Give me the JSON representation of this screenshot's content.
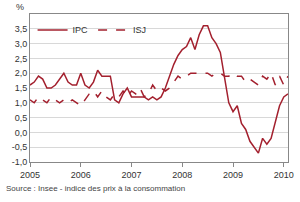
{
  "chart_data": {
    "type": "line",
    "ylabel": "%",
    "annotations": [
      "Source : Insee - indice des prix à la consommation"
    ],
    "categories": [
      "2005",
      null,
      null,
      null,
      null,
      null,
      null,
      null,
      null,
      null,
      null,
      null,
      "2006",
      null,
      null,
      null,
      null,
      null,
      null,
      null,
      null,
      null,
      null,
      null,
      "2007",
      null,
      null,
      null,
      null,
      null,
      null,
      null,
      null,
      null,
      null,
      null,
      "2008",
      null,
      null,
      null,
      null,
      null,
      null,
      null,
      null,
      null,
      null,
      null,
      "2009",
      null,
      null,
      null,
      null,
      null,
      null,
      null,
      null,
      null,
      null,
      null,
      "2010",
      null
    ],
    "series": [
      {
        "name": "IPC",
        "color": "#a3202e",
        "line_style": "solid",
        "values": [
          1.6,
          1.7,
          1.9,
          1.8,
          1.5,
          1.5,
          1.6,
          1.8,
          2.0,
          1.7,
          1.6,
          1.6,
          2.0,
          1.6,
          1.5,
          1.7,
          2.1,
          1.9,
          1.9,
          1.9,
          1.1,
          1.0,
          1.3,
          1.5,
          1.2,
          1.2,
          1.2,
          1.2,
          1.1,
          1.2,
          1.1,
          1.2,
          1.5,
          1.9,
          2.3,
          2.6,
          2.8,
          2.9,
          3.2,
          2.8,
          3.3,
          3.6,
          3.6,
          3.2,
          3.0,
          2.7,
          1.9,
          1.0,
          0.7,
          0.9,
          0.3,
          0.1,
          -0.3,
          -0.5,
          -0.7,
          -0.2,
          -0.4,
          -0.2,
          0.4,
          0.9,
          1.2,
          1.3
        ]
      },
      {
        "name": "ISJ",
        "color": "#a3202e",
        "line_style": "dashed",
        "values": [
          1.1,
          1.0,
          1.2,
          1.1,
          1.0,
          1.2,
          1.1,
          1.0,
          1.1,
          1.0,
          1.1,
          1.0,
          0.9,
          1.1,
          1.3,
          1.4,
          1.2,
          1.4,
          1.2,
          1.1,
          1.3,
          1.2,
          1.4,
          1.2,
          1.4,
          1.3,
          1.5,
          1.2,
          1.3,
          1.6,
          1.4,
          1.5,
          1.4,
          1.5,
          1.7,
          1.9,
          1.8,
          1.9,
          2.0,
          2.0,
          2.0,
          2.0,
          2.0,
          1.9,
          2.0,
          2.0,
          1.9,
          1.9,
          2.0,
          1.9,
          1.9,
          1.7,
          1.8,
          1.7,
          1.6,
          1.9,
          1.8,
          2.0,
          1.6,
          1.9,
          1.6,
          1.9
        ]
      }
    ],
    "ylim": [
      -1,
      4
    ],
    "yticks": [
      {
        "value": -1,
        "label": "-1,0"
      },
      {
        "value": -0.5,
        "label": "-0,5"
      },
      {
        "value": 0,
        "label": "0,0"
      },
      {
        "value": 0.5,
        "label": "0,5"
      },
      {
        "value": 1,
        "label": "1,0"
      },
      {
        "value": 1.5,
        "label": "1,5"
      },
      {
        "value": 2,
        "label": "2,0"
      },
      {
        "value": 2.5,
        "label": "2,5"
      },
      {
        "value": 3,
        "label": "3,0"
      },
      {
        "value": 3.5,
        "label": "3,5"
      }
    ],
    "grid": true,
    "legend": "upper left"
  }
}
